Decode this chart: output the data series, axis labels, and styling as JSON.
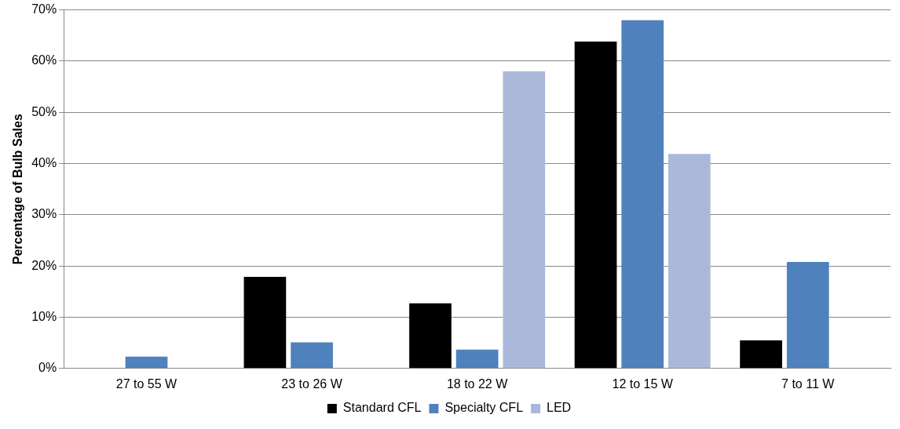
{
  "chart_data": {
    "type": "bar",
    "ylabel": "Percentage of Bulb Sales",
    "categories": [
      "27 to 55 W",
      "23 to 26 W",
      "18 to 22 W",
      "12 to 15 W",
      "7 to 11 W"
    ],
    "series": [
      {
        "name": "Standard CFL",
        "color": "#000000",
        "values": [
          0,
          17.9,
          12.7,
          63.8,
          5.5
        ]
      },
      {
        "name": "Specialty CFL",
        "color": "#4f81bd",
        "values": [
          2.3,
          5.1,
          3.7,
          68,
          20.8
        ]
      },
      {
        "name": "LED",
        "color": "#aab9d9",
        "values": [
          0,
          0,
          58,
          41.9,
          0
        ]
      }
    ],
    "ylim": [
      0,
      70
    ],
    "yticks": [
      {
        "value": 0,
        "label": "0%"
      },
      {
        "value": 10,
        "label": "10%"
      },
      {
        "value": 20,
        "label": "20%"
      },
      {
        "value": 30,
        "label": "30%"
      },
      {
        "value": 40,
        "label": "40%"
      },
      {
        "value": 50,
        "label": "50%"
      },
      {
        "value": 60,
        "label": "60%"
      },
      {
        "value": 70,
        "label": "70%"
      }
    ],
    "grid": "y",
    "legend": "bottom"
  }
}
